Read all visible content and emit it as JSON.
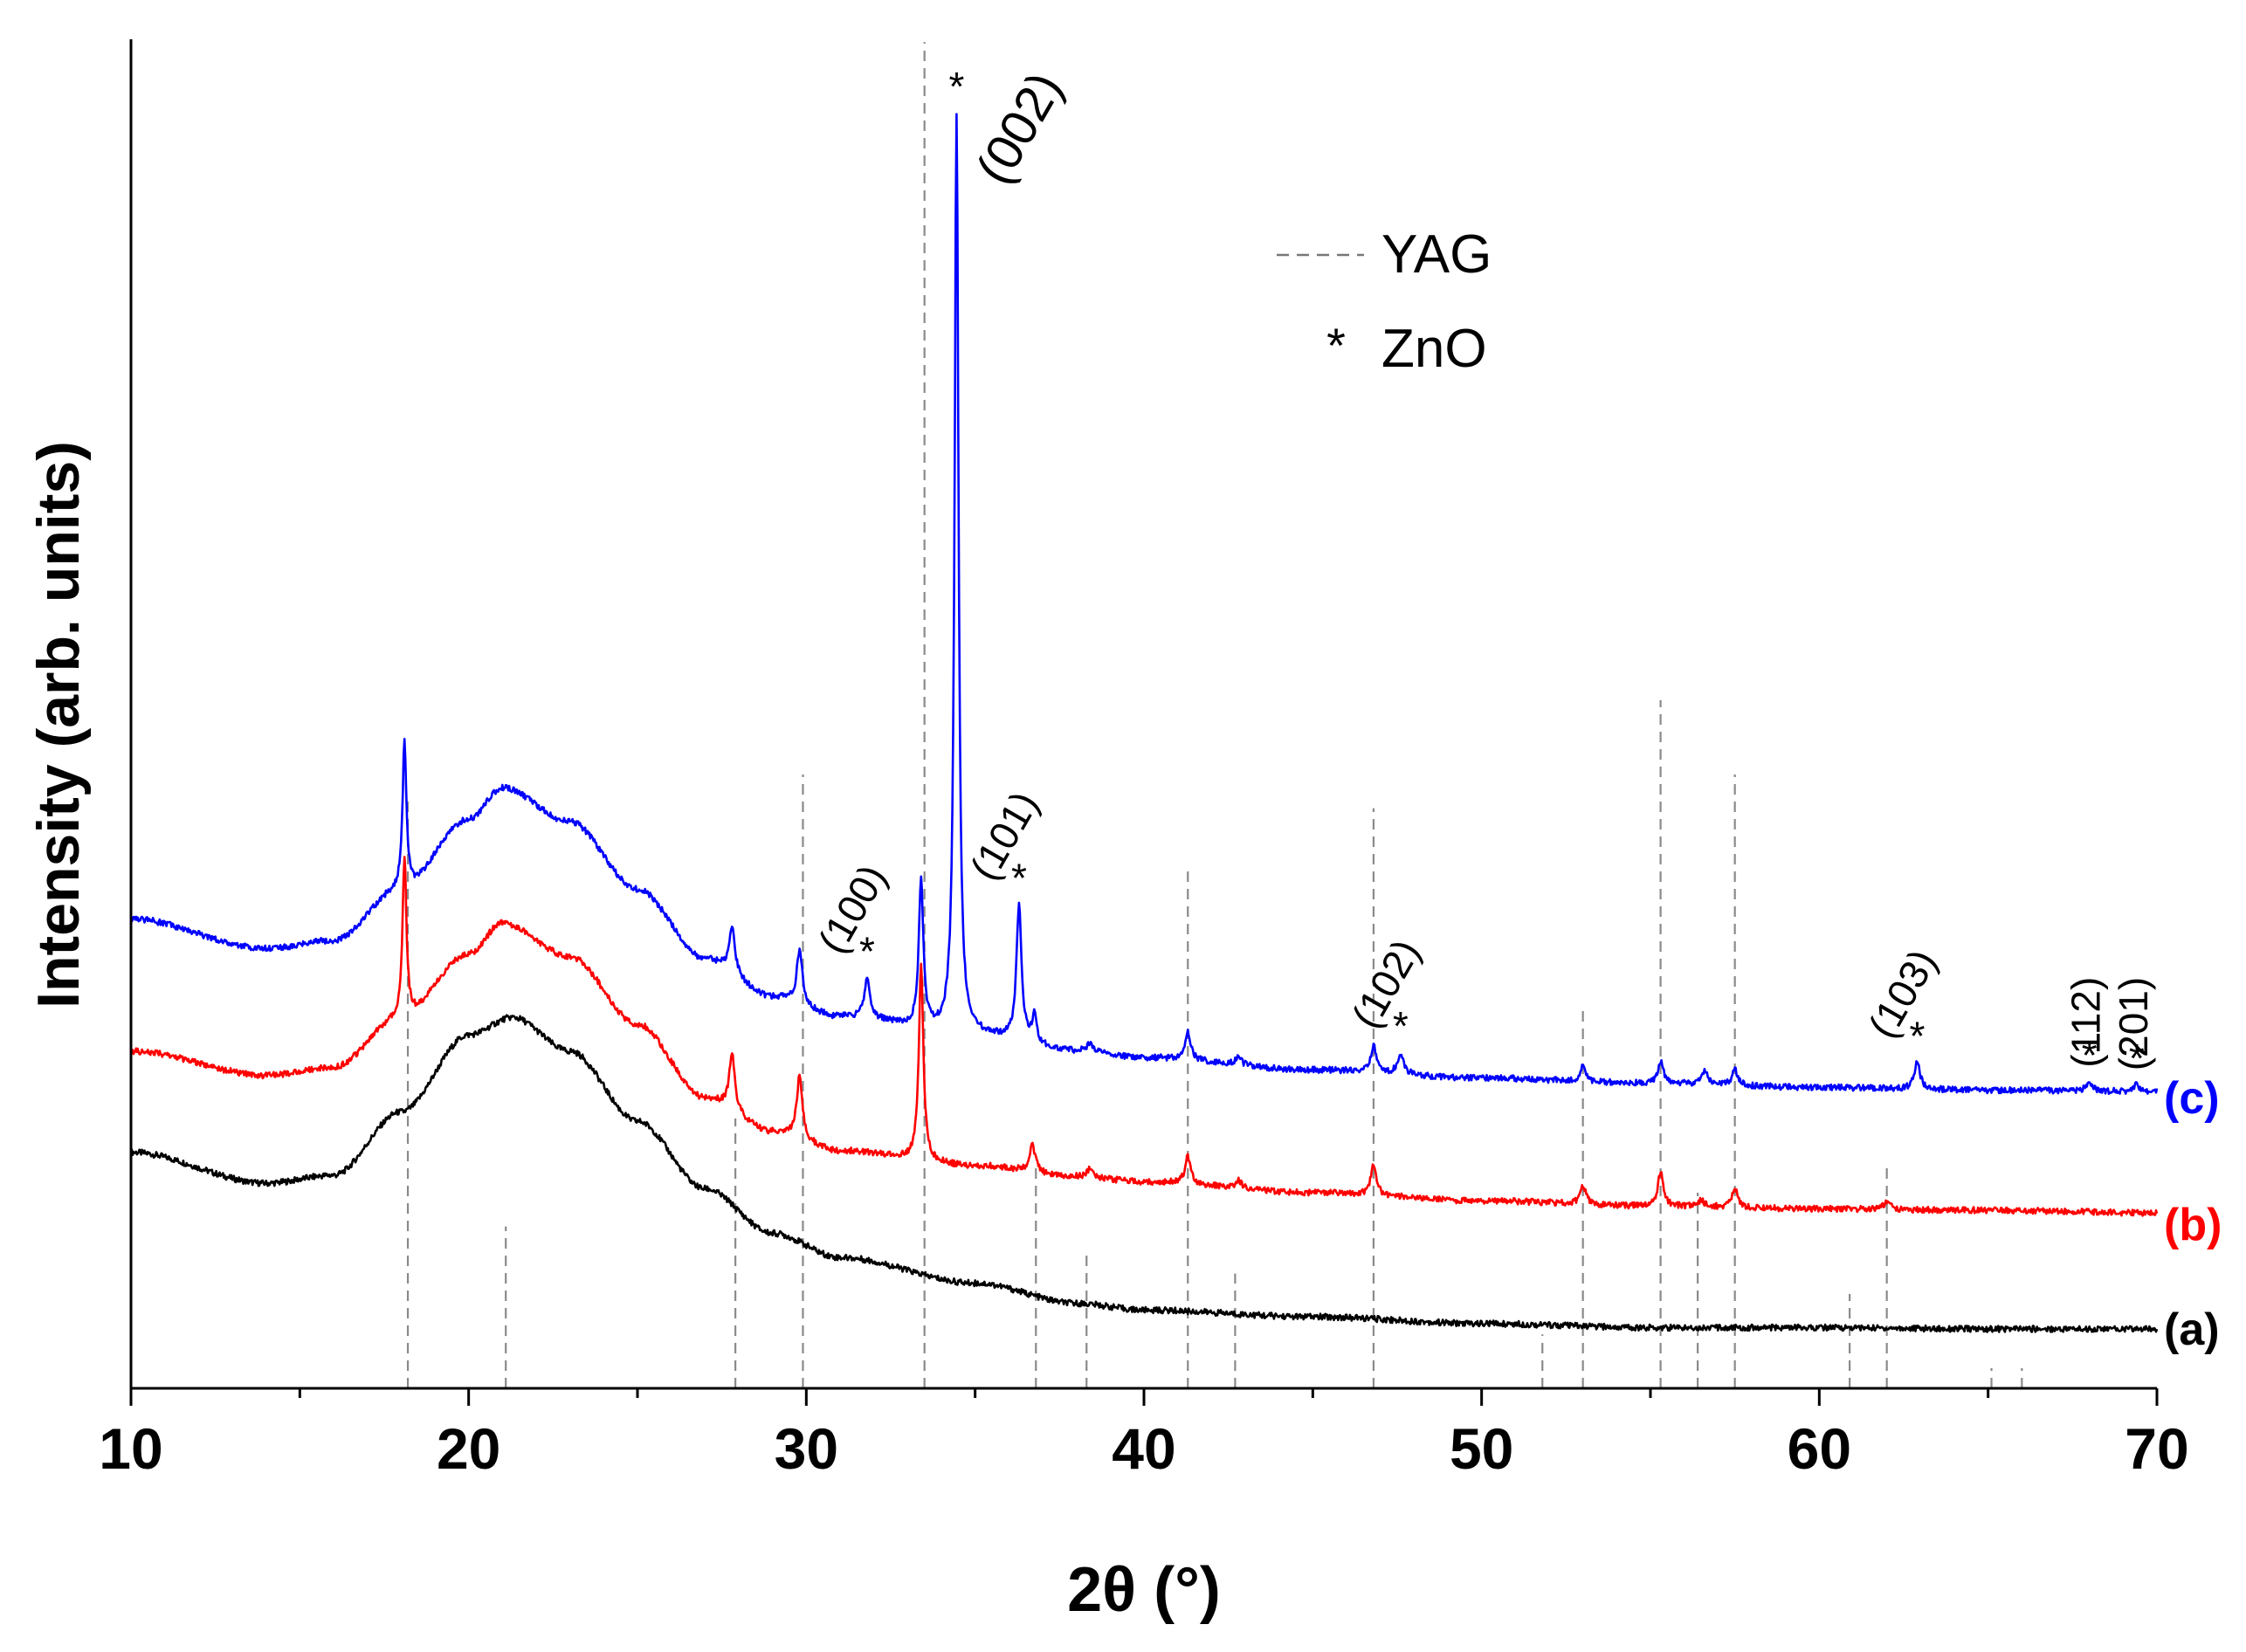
{
  "chart_data": {
    "type": "line",
    "title": "",
    "xlabel": "2θ (°)",
    "ylabel": "Intensity (arb. units)",
    "xlim": [
      10,
      70
    ],
    "ylim": [
      0,
      1
    ],
    "x_ticks": [
      10,
      20,
      30,
      40,
      50,
      60,
      70
    ],
    "x_tick_labels": [
      "10",
      "20",
      "30",
      "40",
      "50",
      "60",
      "70"
    ],
    "y_ticks_shown": false,
    "grid": false,
    "legend": {
      "position": "top-center",
      "entries": [
        {
          "symbol": "dashed-line",
          "label": "YAG"
        },
        {
          "symbol": "*",
          "label": "ZnO"
        }
      ]
    },
    "series": [
      {
        "name": "(a)",
        "label": "(a)",
        "color": "#000000",
        "baseline": [
          [
            10,
            0.175
          ],
          [
            14,
            0.152
          ],
          [
            16,
            0.158
          ],
          [
            18,
            0.205
          ],
          [
            20,
            0.262
          ],
          [
            21.3,
            0.275
          ],
          [
            23,
            0.25
          ],
          [
            25,
            0.198
          ],
          [
            27,
            0.148
          ],
          [
            29,
            0.115
          ],
          [
            31,
            0.097
          ],
          [
            35,
            0.078
          ],
          [
            38,
            0.063
          ],
          [
            40,
            0.058
          ],
          [
            45,
            0.053
          ],
          [
            50,
            0.048
          ],
          [
            55,
            0.045
          ],
          [
            60,
            0.045
          ],
          [
            65,
            0.044
          ],
          [
            70,
            0.044
          ]
        ],
        "peaks": []
      },
      {
        "name": "(b)",
        "label": "(b)",
        "color": "#ff0000",
        "baseline": [
          [
            10,
            0.25
          ],
          [
            14,
            0.232
          ],
          [
            16,
            0.238
          ],
          [
            18,
            0.275
          ],
          [
            20,
            0.322
          ],
          [
            21,
            0.345
          ],
          [
            23,
            0.32
          ],
          [
            25,
            0.27
          ],
          [
            27,
            0.215
          ],
          [
            29,
            0.19
          ],
          [
            31,
            0.176
          ],
          [
            35,
            0.165
          ],
          [
            38,
            0.157
          ],
          [
            40,
            0.153
          ],
          [
            45,
            0.145
          ],
          [
            50,
            0.139
          ],
          [
            55,
            0.135
          ],
          [
            60,
            0.133
          ],
          [
            65,
            0.132
          ],
          [
            70,
            0.13
          ]
        ],
        "peaks": [
          {
            "x": 18.1,
            "h": 0.12,
            "w": 0.07
          },
          {
            "x": 27.8,
            "h": 0.042,
            "w": 0.1
          },
          {
            "x": 29.8,
            "h": 0.046,
            "w": 0.1
          },
          {
            "x": 33.4,
            "h": 0.145,
            "w": 0.08
          },
          {
            "x": 36.7,
            "h": 0.02,
            "w": 0.1
          },
          {
            "x": 38.4,
            "h": 0.006,
            "w": 0.1
          },
          {
            "x": 41.3,
            "h": 0.02,
            "w": 0.1
          },
          {
            "x": 42.8,
            "h": 0.006,
            "w": 0.1
          },
          {
            "x": 46.8,
            "h": 0.022,
            "w": 0.1
          },
          {
            "x": 53.0,
            "h": 0.014,
            "w": 0.1
          },
          {
            "x": 55.3,
            "h": 0.025,
            "w": 0.1
          },
          {
            "x": 56.5,
            "h": 0.005,
            "w": 0.1
          },
          {
            "x": 57.5,
            "h": 0.014,
            "w": 0.1
          },
          {
            "x": 62.0,
            "h": 0.006,
            "w": 0.1
          }
        ]
      },
      {
        "name": "(c)",
        "label": "(c)",
        "color": "#0000ff",
        "baseline": [
          [
            10,
            0.348
          ],
          [
            14,
            0.326
          ],
          [
            16,
            0.332
          ],
          [
            18,
            0.37
          ],
          [
            20,
            0.422
          ],
          [
            21,
            0.445
          ],
          [
            23,
            0.42
          ],
          [
            25,
            0.37
          ],
          [
            27,
            0.318
          ],
          [
            29,
            0.29
          ],
          [
            31,
            0.275
          ],
          [
            35,
            0.262
          ],
          [
            38,
            0.25
          ],
          [
            40,
            0.245
          ],
          [
            45,
            0.236
          ],
          [
            50,
            0.23
          ],
          [
            55,
            0.226
          ],
          [
            60,
            0.223
          ],
          [
            65,
            0.221
          ],
          [
            70,
            0.22
          ]
        ],
        "peaks": [
          {
            "x": 18.1,
            "h": 0.11,
            "w": 0.07
          },
          {
            "x": 27.8,
            "h": 0.035,
            "w": 0.1
          },
          {
            "x": 29.8,
            "h": 0.04,
            "w": 0.1
          },
          {
            "x": 31.8,
            "h": 0.03,
            "w": 0.1
          },
          {
            "x": 33.4,
            "h": 0.11,
            "w": 0.08
          },
          {
            "x": 34.45,
            "h": 0.682,
            "w": 0.07
          },
          {
            "x": 36.3,
            "h": 0.1,
            "w": 0.09
          },
          {
            "x": 36.75,
            "h": 0.02,
            "w": 0.08
          },
          {
            "x": 38.4,
            "h": 0.006,
            "w": 0.1
          },
          {
            "x": 41.3,
            "h": 0.02,
            "w": 0.1
          },
          {
            "x": 42.8,
            "h": 0.006,
            "w": 0.1
          },
          {
            "x": 46.8,
            "h": 0.02,
            "w": 0.1
          },
          {
            "x": 47.6,
            "h": 0.016,
            "w": 0.1
          },
          {
            "x": 53.0,
            "h": 0.011,
            "w": 0.1
          },
          {
            "x": 55.3,
            "h": 0.017,
            "w": 0.1
          },
          {
            "x": 56.6,
            "h": 0.01,
            "w": 0.1
          },
          {
            "x": 57.5,
            "h": 0.012,
            "w": 0.1
          },
          {
            "x": 62.9,
            "h": 0.02,
            "w": 0.1
          },
          {
            "x": 68.0,
            "h": 0.007,
            "w": 0.1
          },
          {
            "x": 69.4,
            "h": 0.005,
            "w": 0.1
          }
        ]
      }
    ],
    "yag_reference_lines": [
      {
        "x": 18.2,
        "top": 0.435
      },
      {
        "x": 21.1,
        "top": 0.12
      },
      {
        "x": 27.9,
        "top": 0.2
      },
      {
        "x": 29.9,
        "top": 0.455
      },
      {
        "x": 33.5,
        "top": 0.998
      },
      {
        "x": 36.8,
        "top": 0.165
      },
      {
        "x": 38.3,
        "top": 0.1
      },
      {
        "x": 41.3,
        "top": 0.385
      },
      {
        "x": 42.7,
        "top": 0.085
      },
      {
        "x": 46.8,
        "top": 0.43
      },
      {
        "x": 51.8,
        "top": 0.04
      },
      {
        "x": 53.0,
        "top": 0.28
      },
      {
        "x": 55.3,
        "top": 0.51
      },
      {
        "x": 56.4,
        "top": 0.145
      },
      {
        "x": 57.5,
        "top": 0.455
      },
      {
        "x": 60.9,
        "top": 0.07
      },
      {
        "x": 62.0,
        "top": 0.165
      },
      {
        "x": 65.1,
        "top": 0.015
      },
      {
        "x": 66.0,
        "top": 0.015
      }
    ],
    "zno_peak_annotations": [
      {
        "hkl": "(002)",
        "x": 34.45
      },
      {
        "hkl": "(100)",
        "x": 31.8
      },
      {
        "hkl": "(101)",
        "x": 36.3
      },
      {
        "hkl": "(102)",
        "x": 47.6
      },
      {
        "hkl": "(103)",
        "x": 62.9
      },
      {
        "hkl": "(112)",
        "x": 68.0
      },
      {
        "hkl": "(201)",
        "x": 69.4
      }
    ]
  }
}
